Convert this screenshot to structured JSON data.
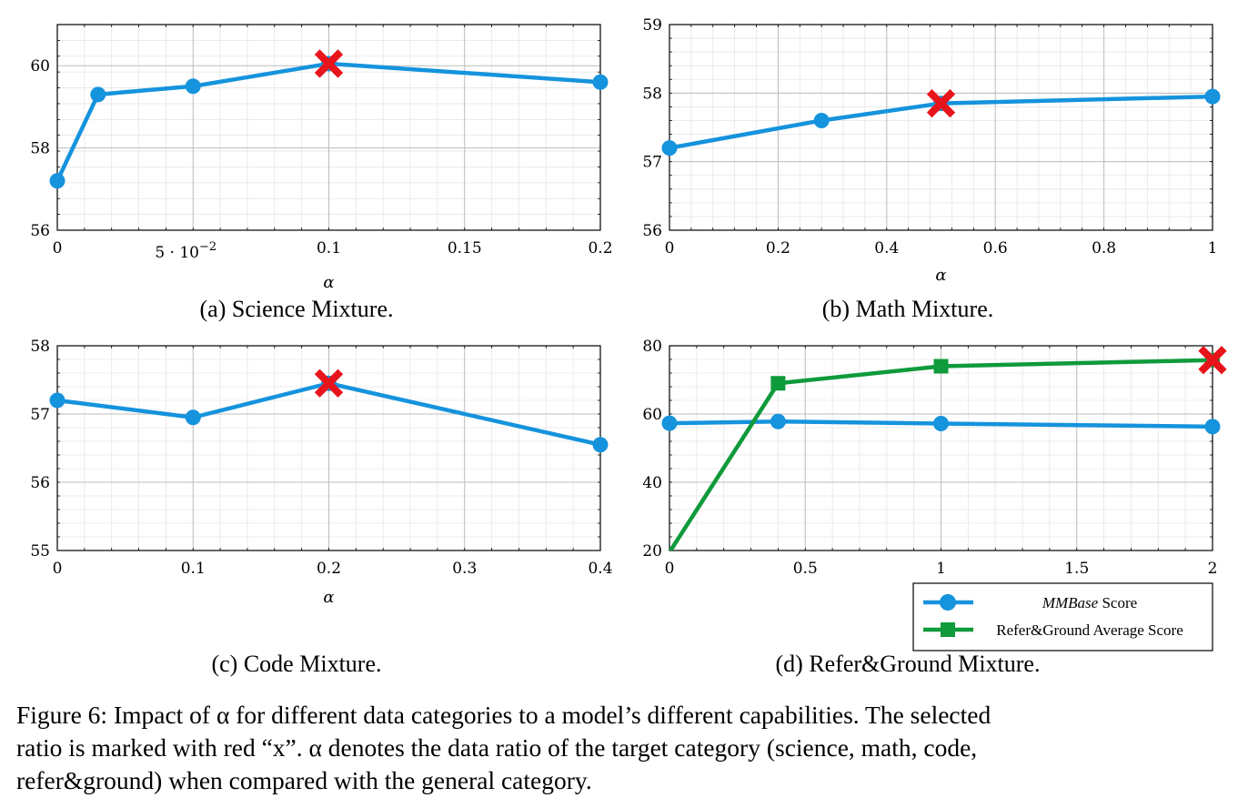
{
  "colors": {
    "mmbase": "#1593dd",
    "refer": "#0f9a3b",
    "marker": "#e8141c",
    "grid": "#bdbdbd"
  },
  "legend": {
    "mmbase_label_italic": "MMBase",
    "mmbase_label_rest": " Score",
    "refer_label": "Refer&Ground Average Score"
  },
  "caption": {
    "lines": [
      "Figure 6: Impact of α for different data categories to a model’s different capabilities. The selected",
      "ratio is marked with red “x”. α denotes the data ratio of the target category (science, math, code,",
      "refer&ground) when compared with the general category."
    ]
  },
  "chart_data": [
    {
      "id": "a",
      "type": "line",
      "caption": "(a) Science Mixture.",
      "xlabel": "α",
      "ylabel": "",
      "xlim": [
        0,
        0.2
      ],
      "ylim": [
        56,
        61
      ],
      "xticks": [
        0,
        0.05,
        0.1,
        0.15,
        0.2
      ],
      "xticklabels": [
        "0",
        "5 · 10",
        "0.1",
        "0.15",
        "0.2"
      ],
      "xtick_exp": "−2",
      "yticks": [
        56,
        58,
        60
      ],
      "yticklabels": [
        "56",
        "58",
        "60"
      ],
      "grid": true,
      "series": [
        {
          "key": "mmbase",
          "marker": "circle",
          "x": [
            0,
            0.015,
            0.05,
            0.1,
            0.2
          ],
          "y": [
            57.2,
            59.3,
            59.5,
            60.05,
            59.6
          ]
        }
      ],
      "selected": {
        "x": 0.1,
        "y": 60.05
      }
    },
    {
      "id": "b",
      "type": "line",
      "caption": "(b) Math Mixture.",
      "xlabel": "α",
      "ylabel": "",
      "xlim": [
        0,
        1
      ],
      "ylim": [
        56,
        59
      ],
      "xticks": [
        0,
        0.2,
        0.4,
        0.6,
        0.8,
        1
      ],
      "xticklabels": [
        "0",
        "0.2",
        "0.4",
        "0.6",
        "0.8",
        "1"
      ],
      "yticks": [
        56,
        57,
        58,
        59
      ],
      "yticklabels": [
        "56",
        "57",
        "58",
        "59"
      ],
      "grid": true,
      "series": [
        {
          "key": "mmbase",
          "marker": "circle",
          "x": [
            0,
            0.28,
            0.5,
            1
          ],
          "y": [
            57.2,
            57.6,
            57.85,
            57.95
          ]
        }
      ],
      "selected": {
        "x": 0.5,
        "y": 57.85
      }
    },
    {
      "id": "c",
      "type": "line",
      "caption": "(c) Code Mixture.",
      "xlabel": "α",
      "ylabel": "",
      "xlim": [
        0,
        0.4
      ],
      "ylim": [
        55,
        58
      ],
      "xticks": [
        0,
        0.1,
        0.2,
        0.3,
        0.4
      ],
      "xticklabels": [
        "0",
        "0.1",
        "0.2",
        "0.3",
        "0.4"
      ],
      "yticks": [
        55,
        56,
        57,
        58
      ],
      "yticklabels": [
        "55",
        "56",
        "57",
        "58"
      ],
      "grid": true,
      "series": [
        {
          "key": "mmbase",
          "marker": "circle",
          "x": [
            0,
            0.1,
            0.2,
            0.4
          ],
          "y": [
            57.2,
            56.95,
            57.45,
            56.55
          ]
        }
      ],
      "selected": {
        "x": 0.2,
        "y": 57.45
      }
    },
    {
      "id": "d",
      "type": "line",
      "caption": "(d) Refer&Ground Mixture.",
      "xlabel": "",
      "ylabel": "",
      "xlim": [
        0,
        2
      ],
      "ylim": [
        20,
        80
      ],
      "xticks": [
        0,
        0.5,
        1,
        1.5,
        2
      ],
      "xticklabels": [
        "0",
        "0.5",
        "1",
        "1.5",
        "2"
      ],
      "yticks": [
        20,
        40,
        60,
        80
      ],
      "yticklabels": [
        "20",
        "40",
        "60",
        "80"
      ],
      "grid": true,
      "legend_position": "bottom-right",
      "series": [
        {
          "key": "mmbase",
          "marker": "circle",
          "x": [
            0,
            0.4,
            1,
            2
          ],
          "y": [
            57.3,
            57.8,
            57.2,
            56.3
          ]
        },
        {
          "key": "refer",
          "marker": "square",
          "x": [
            0,
            0.4,
            1,
            2
          ],
          "y": [
            19.5,
            69,
            74,
            75.8
          ]
        }
      ],
      "selected": {
        "x": 2,
        "y": 75.8
      }
    }
  ]
}
